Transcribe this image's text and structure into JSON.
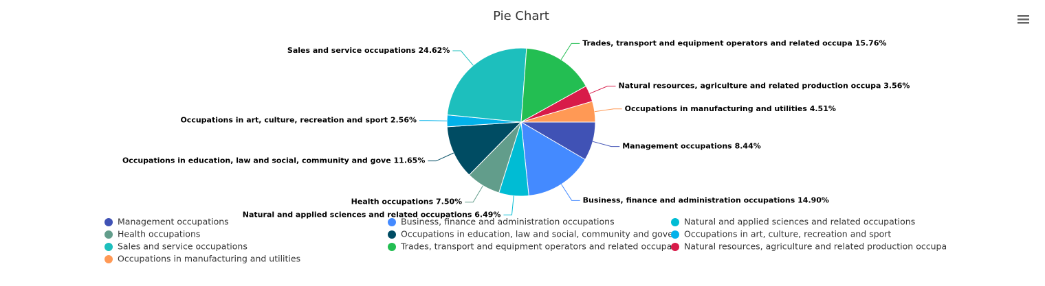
{
  "chart_data": {
    "type": "pie",
    "title": "Pie Chart",
    "categories": [
      "Management occupations",
      "Business, finance and administration occupations",
      "Natural and applied sciences and related occupations",
      "Health occupations",
      "Occupations in education, law and social, community and gove",
      "Occupations in art, culture, recreation and sport",
      "Sales and service occupations",
      "Trades, transport and equipment operators and related occupa",
      "Natural resources, agriculture and related production occupa",
      "Occupations in manufacturing and utilities"
    ],
    "values": [
      8.44,
      14.9,
      6.49,
      7.5,
      11.65,
      2.56,
      24.62,
      15.76,
      3.56,
      4.51
    ],
    "value_labels": [
      "8.44%",
      "14.90%",
      "6.49%",
      "7.50%",
      "11.65%",
      "2.56%",
      "24.62%",
      "15.76%",
      "3.56%",
      "4.51%"
    ],
    "colors": [
      "#4052b5",
      "#448aff",
      "#00bcd4",
      "#629d8b",
      "#004c63",
      "#03b2ea",
      "#1dbfbd",
      "#23be52",
      "#d81b49",
      "#ff9955"
    ],
    "start_angle": 90,
    "legend": "bottom"
  }
}
